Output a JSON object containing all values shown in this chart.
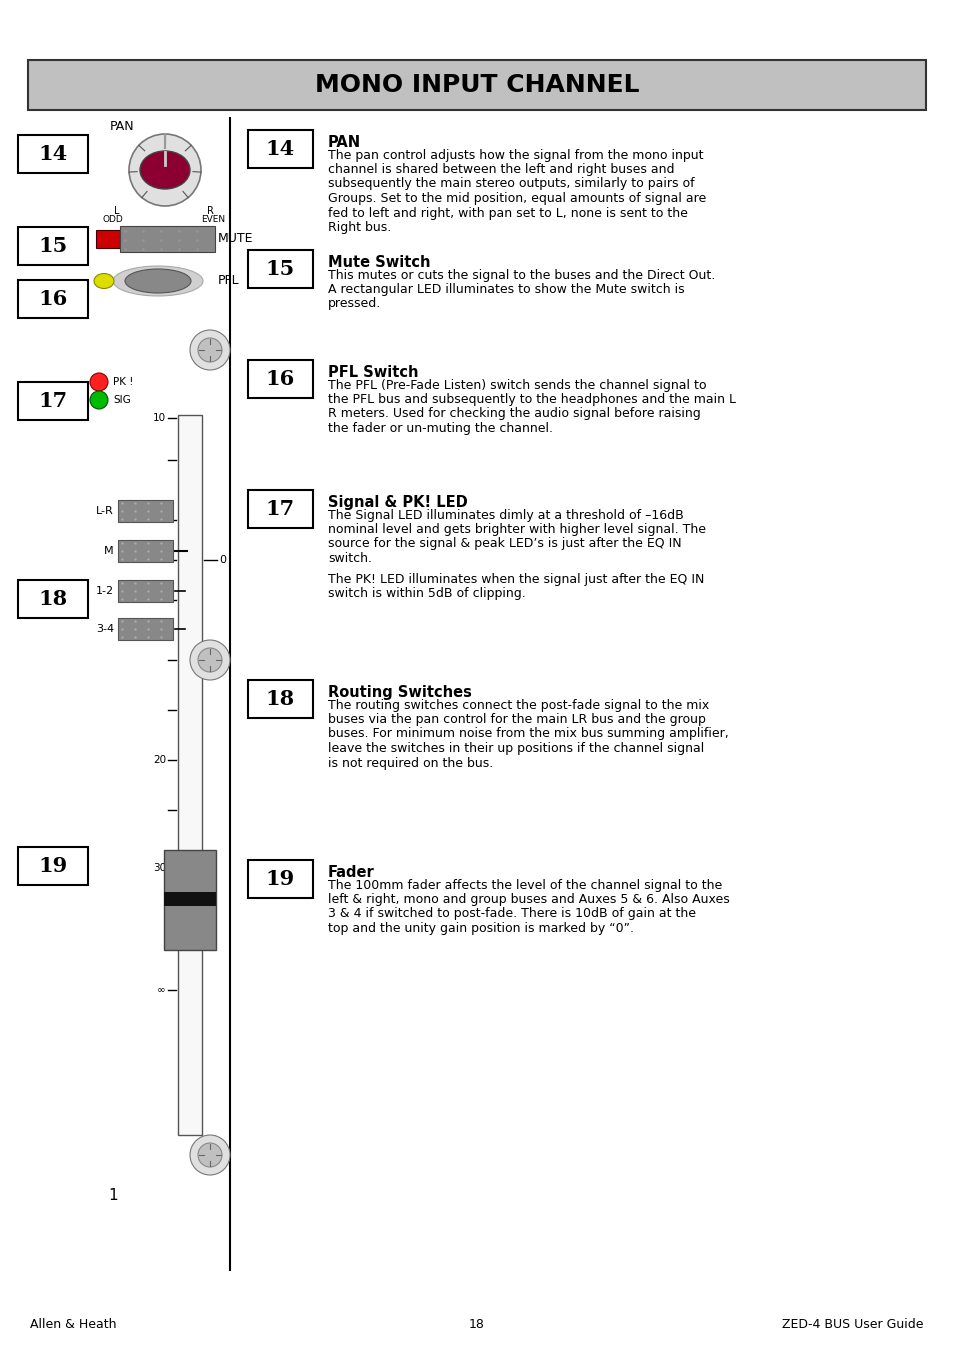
{
  "title": "MONO INPUT CHANNEL",
  "title_bg": "#c0c0c0",
  "page_bg": "#ffffff",
  "footer_left": "Allen & Heath",
  "footer_center": "18",
  "footer_right": "ZED-4 BUS User Guide",
  "sections": [
    {
      "num": "14",
      "heading": "PAN",
      "body": "The pan control adjusts how the signal from the mono input channel is shared between the left and right buses and subsequently the main stereo outputs, similarly to pairs of Groups. Set to the mid position, equal amounts of signal are fed to left and right, with pan set to L, none is sent to the Right bus."
    },
    {
      "num": "15",
      "heading": "Mute Switch",
      "body": "This mutes or cuts the signal to the buses and the Direct Out. A rectangular LED illuminates to show the Mute switch is pressed."
    },
    {
      "num": "16",
      "heading": "PFL Switch",
      "body": "The PFL (Pre-Fade Listen) switch sends the channel signal to the PFL bus and subsequently to the headphones and the main L R meters. Used for checking the audio signal before raising the fader or un-muting the channel."
    },
    {
      "num": "17",
      "heading": "Signal & PK! LED",
      "body1": "The Signal LED illuminates dimly at a threshold of –16dB nominal level and gets brighter with higher level signal. The source for the signal & peak LED’s is just after the EQ IN switch.",
      "body2": "The PK! LED illuminates when the signal just after the EQ IN switch is within 5dB of clipping."
    },
    {
      "num": "18",
      "heading": "Routing Switches",
      "body": "The routing switches connect the post-fade signal to the mix buses via the pan control for the main LR bus and the group buses. For minimum noise from the mix bus summing amplifier, leave the switches in their up positions if the channel signal is not required on the bus."
    },
    {
      "num": "19",
      "heading": "Fader",
      "body": "The 100mm fader affects the level of the channel signal to the left & right, mono and group buses and Auxes 5 & 6. Also Auxes 3 & 4 if switched to post-fade. There is 10dB of gain at the top and the unity gain position is marked by “0”."
    }
  ]
}
